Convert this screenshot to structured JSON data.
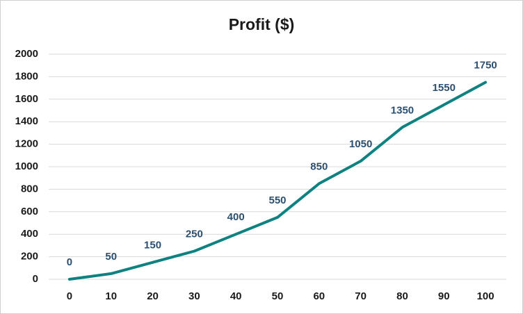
{
  "chart_data": {
    "type": "line",
    "title": "Profit ($)",
    "x": [
      0,
      10,
      20,
      30,
      40,
      50,
      60,
      70,
      80,
      90,
      100
    ],
    "series": [
      {
        "name": "Profit ($)",
        "color": "#0e8281",
        "values": [
          0,
          50,
          150,
          250,
          400,
          550,
          850,
          1050,
          1350,
          1550,
          1750
        ]
      }
    ],
    "xlim": [
      -5,
      105
    ],
    "xticks": [
      0,
      10,
      20,
      30,
      40,
      50,
      60,
      70,
      80,
      90,
      100
    ],
    "ylim": [
      0,
      2000
    ],
    "yticks": [
      0,
      200,
      400,
      600,
      800,
      1000,
      1200,
      1400,
      1600,
      1800,
      2000
    ],
    "grid": true,
    "data_labels": true,
    "label_color": "#2c4f70"
  }
}
